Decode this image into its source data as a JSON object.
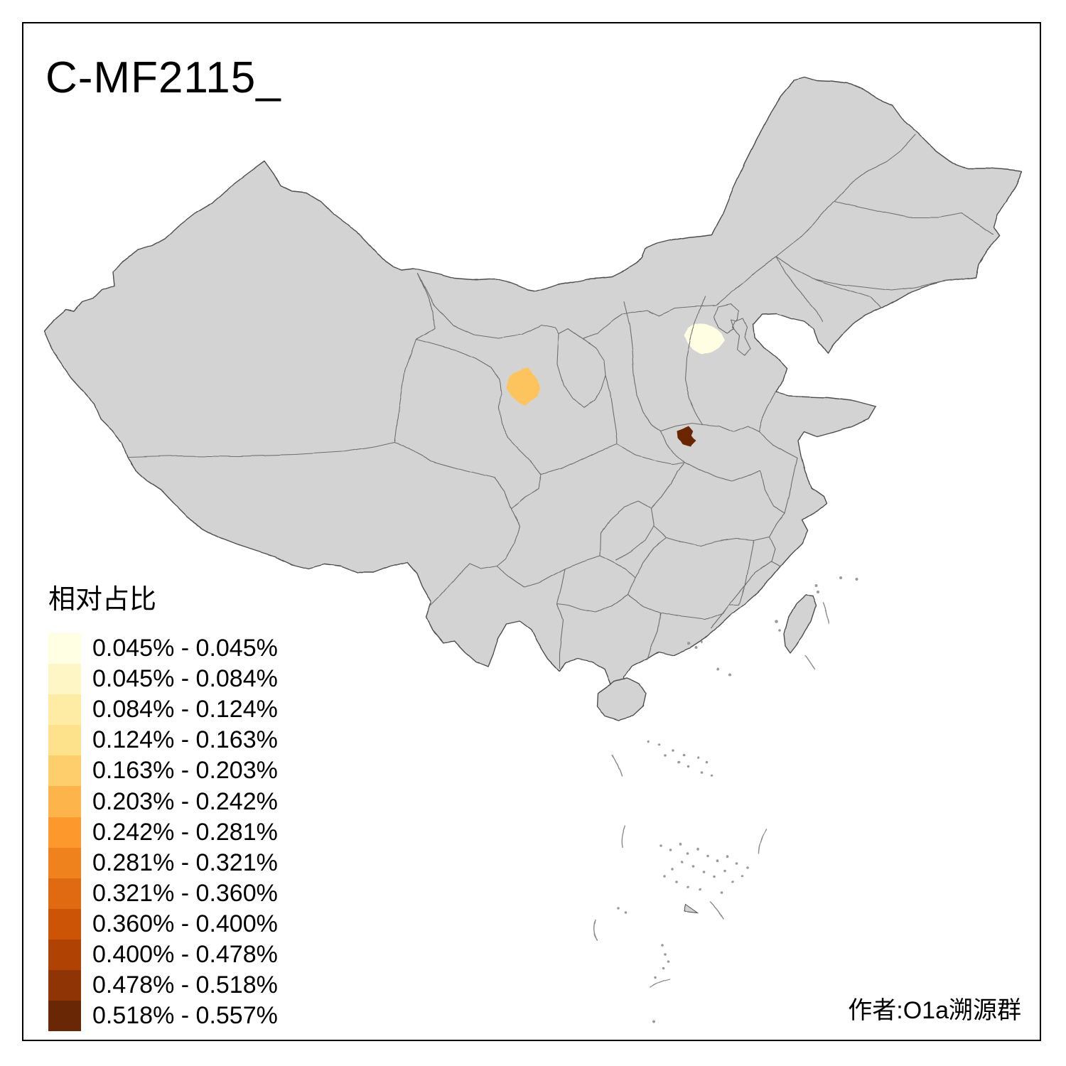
{
  "title": "C-MF2115_",
  "attribution": "作者:O1a溯源群",
  "legend": {
    "title": "相对占比",
    "items": [
      {
        "color": "#FFFFE3",
        "label": "0.045% - 0.045%"
      },
      {
        "color": "#FEF6C4",
        "label": "0.045% - 0.084%"
      },
      {
        "color": "#FEECA4",
        "label": "0.084% - 0.124%"
      },
      {
        "color": "#FEE18B",
        "label": "0.124% - 0.163%"
      },
      {
        "color": "#FDCE6B",
        "label": "0.163% - 0.203%"
      },
      {
        "color": "#FDB44B",
        "label": "0.203% - 0.242%"
      },
      {
        "color": "#FD992C",
        "label": "0.242% - 0.281%"
      },
      {
        "color": "#F0821E",
        "label": "0.281% - 0.321%"
      },
      {
        "color": "#E06A12",
        "label": "0.321% - 0.360%"
      },
      {
        "color": "#CC5407",
        "label": "0.360% - 0.400%"
      },
      {
        "color": "#B04304",
        "label": "0.400% - 0.478%"
      },
      {
        "color": "#8F3404",
        "label": "0.478% - 0.518%"
      },
      {
        "color": "#692706",
        "label": "0.518% - 0.557%"
      }
    ]
  },
  "map": {
    "land_fill": "#D3D3D3",
    "nation_stroke": "#4D4D4D",
    "province_stroke": "#6E6E6E",
    "highlighted_regions": [
      {
        "id": "region-north-pale",
        "color": "#FFFDE2"
      },
      {
        "id": "region-northwest-orange",
        "color": "#FDC45D"
      },
      {
        "id": "region-central-dark",
        "color": "#6A2606"
      }
    ]
  }
}
